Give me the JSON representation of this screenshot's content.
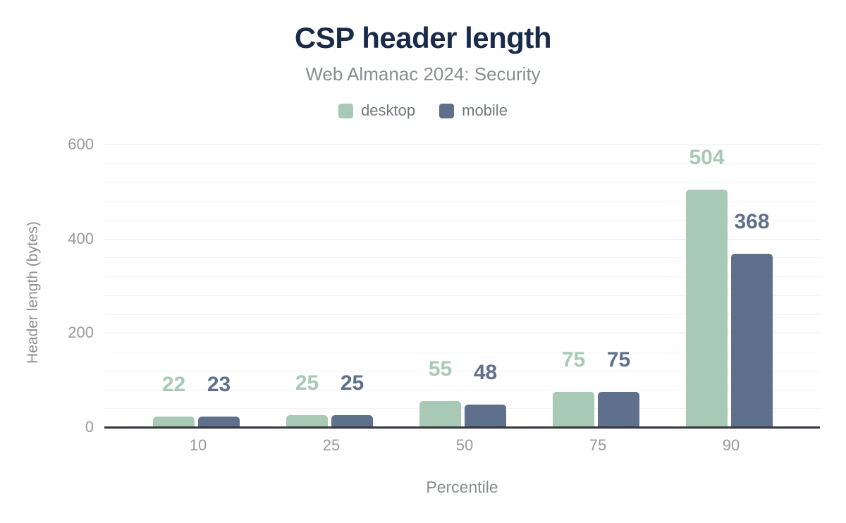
{
  "chart_data": {
    "type": "bar",
    "title": "CSP header length",
    "subtitle": "Web Almanac 2024: Security",
    "categories": [
      "10",
      "25",
      "50",
      "75",
      "90"
    ],
    "series": [
      {
        "name": "desktop",
        "color": "#a8c9b5",
        "values": [
          22,
          25,
          55,
          75,
          504
        ]
      },
      {
        "name": "mobile",
        "color": "#5f708c",
        "values": [
          23,
          25,
          48,
          75,
          368
        ]
      }
    ],
    "xlabel": "Percentile",
    "ylabel": "Header length (bytes)",
    "ylim": [
      0,
      600
    ],
    "yticks": [
      0,
      200,
      400,
      600
    ],
    "minor_grid_step": 40,
    "grid": true,
    "legend_position": "top",
    "data_labels": true
  },
  "colors": {
    "title": "#1a2b49",
    "subtitle": "#8a8d91",
    "axis_text": "#97999d",
    "axis_line": "#35363b",
    "background": "#ffffff",
    "gridline_minor": "#f4f4f6",
    "gridline_major": "#e9eaec"
  }
}
